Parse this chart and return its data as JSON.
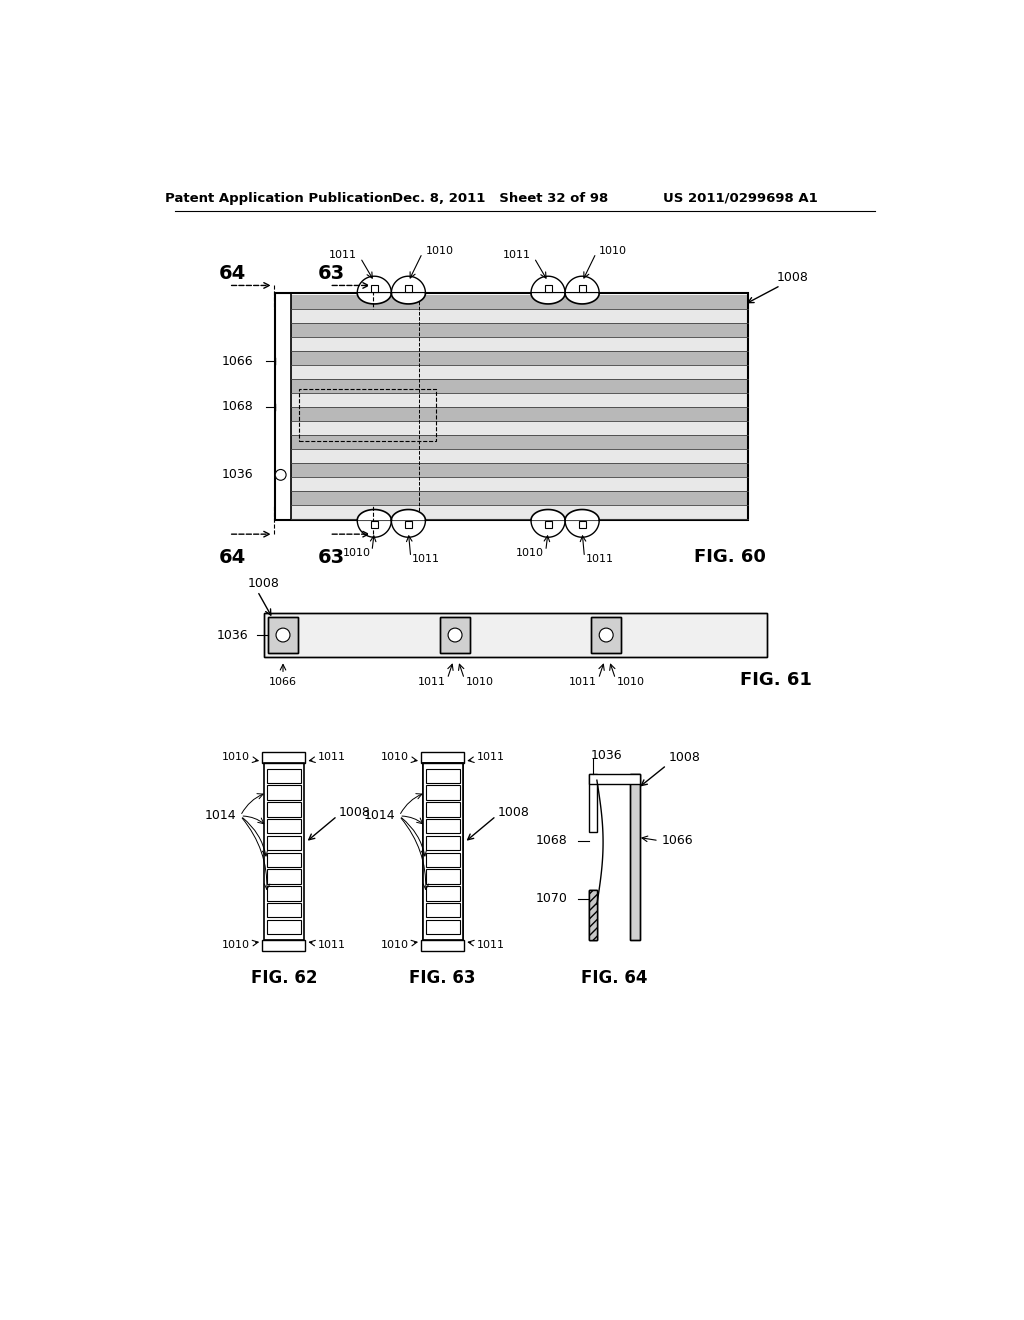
{
  "header_left": "Patent Application Publication",
  "header_mid": "Dec. 8, 2011   Sheet 32 of 98",
  "header_right": "US 2011/0299698 A1",
  "background": "#ffffff",
  "fig60_label": "FIG. 60",
  "fig61_label": "FIG. 61",
  "fig62_label": "FIG. 62",
  "fig63_label": "FIG. 63",
  "fig64_label": "FIG. 64"
}
